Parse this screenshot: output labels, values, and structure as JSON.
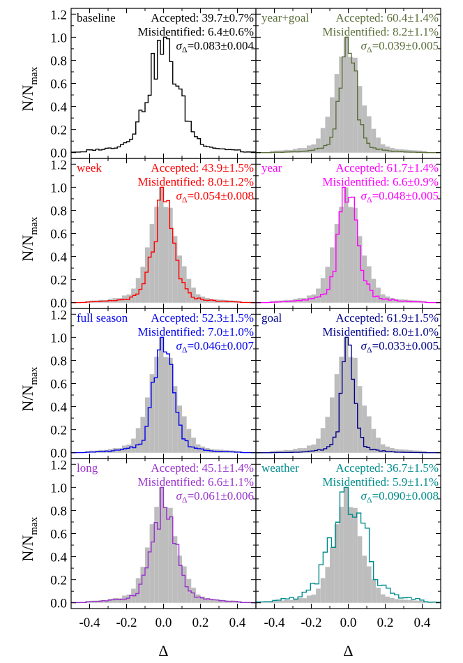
{
  "figure": {
    "x_axis_label": "Δ",
    "y_axis_label": "N/N",
    "y_axis_label_sub": "max",
    "x_ticks": [
      "-0.4",
      "-0.2",
      "0.0",
      "0.2",
      "0.4"
    ],
    "y_ticks": [
      "0.0",
      "0.2",
      "0.4",
      "0.6",
      "0.8",
      "1.0",
      "1.2"
    ],
    "sigma_symbol": "σ",
    "sigma_sub": "Δ"
  },
  "chart_data": [
    {
      "type": "histogram",
      "panel": "baseline",
      "color": "#000000",
      "show_reference": false,
      "accepted": "Accepted: 39.7±0.7%",
      "misidentified": "Misidentified: 6.4±0.6%",
      "sigma": "=0.083±0.004",
      "xlim": [
        -0.5,
        0.5
      ],
      "ylim": [
        -0.05,
        1.25
      ]
    },
    {
      "type": "histogram",
      "panel": "year+goal",
      "color": "#5a6e3a",
      "show_reference": true,
      "accepted": "Accepted: 60.4±1.4%",
      "misidentified": "Misidentified: 8.2±1.1%",
      "sigma": "=0.039±0.005",
      "xlim": [
        -0.5,
        0.5
      ],
      "ylim": [
        -0.05,
        1.25
      ]
    },
    {
      "type": "histogram",
      "panel": "week",
      "color": "#ff0000",
      "show_reference": true,
      "accepted": "Accepted: 43.9±1.5%",
      "misidentified": "Misidentified: 8.0±1.2%",
      "sigma": "=0.054±0.008",
      "xlim": [
        -0.5,
        0.5
      ],
      "ylim": [
        -0.05,
        1.25
      ]
    },
    {
      "type": "histogram",
      "panel": "year",
      "color": "#ff00ff",
      "show_reference": true,
      "accepted": "Accepted: 61.7±1.4%",
      "misidentified": "Misidentified: 6.6±0.9%",
      "sigma": "=0.048±0.005",
      "xlim": [
        -0.5,
        0.5
      ],
      "ylim": [
        -0.05,
        1.25
      ]
    },
    {
      "type": "histogram",
      "panel": "full season",
      "color": "#0000ee",
      "show_reference": true,
      "accepted": "Accepted: 52.3±1.5%",
      "misidentified": "Misidentified: 7.0±1.0%",
      "sigma": "=0.046±0.007",
      "xlim": [
        -0.5,
        0.5
      ],
      "ylim": [
        -0.05,
        1.25
      ]
    },
    {
      "type": "histogram",
      "panel": "goal",
      "color": "#00008b",
      "show_reference": true,
      "accepted": "Accepted: 61.9±1.5%",
      "misidentified": "Misidentified: 8.0±1.0%",
      "sigma": "=0.033±0.005",
      "xlim": [
        -0.5,
        0.5
      ],
      "ylim": [
        -0.05,
        1.25
      ]
    },
    {
      "type": "histogram",
      "panel": "long",
      "color": "#9932cc",
      "show_reference": true,
      "accepted": "Accepted: 45.1±1.4%",
      "misidentified": "Misidentified: 6.6±1.1%",
      "sigma": "=0.061±0.006",
      "xlim": [
        -0.5,
        0.5
      ],
      "ylim": [
        -0.05,
        1.25
      ]
    },
    {
      "type": "histogram",
      "panel": "weather",
      "color": "#008b8b",
      "show_reference": true,
      "accepted": "Accepted: 36.7±1.5%",
      "misidentified": "Misidentified: 5.9±1.1%",
      "sigma": "=0.090±0.008",
      "xlim": [
        -0.5,
        0.5
      ],
      "ylim": [
        -0.05,
        1.25
      ]
    }
  ]
}
